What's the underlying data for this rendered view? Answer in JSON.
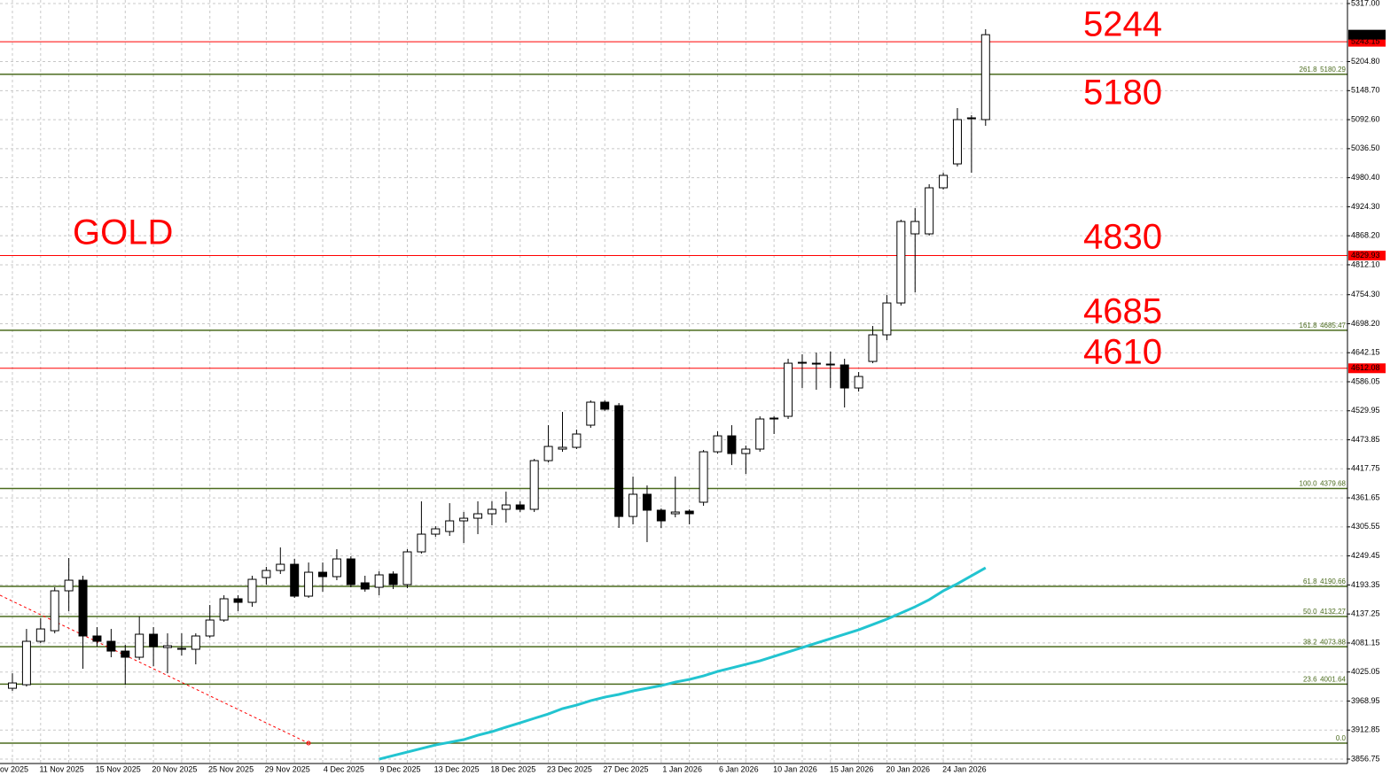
{
  "chart_data": {
    "type": "candlestick",
    "annotations": [
      "GOLD",
      "5244",
      "5180",
      "4830",
      "4685",
      "4610"
    ],
    "categories": [
      "ov 2025",
      null,
      null,
      null,
      "11 Nov 2025",
      null,
      null,
      null,
      "15 Nov 2025",
      null,
      null,
      null,
      "20 Nov 2025",
      null,
      null,
      null,
      "25 Nov 2025",
      null,
      null,
      null,
      "29 Nov 2025",
      null,
      null,
      null,
      "4 Dec 2025",
      null,
      null,
      null,
      "9 Dec 2025",
      null,
      null,
      null,
      "13 Dec 2025",
      null,
      null,
      null,
      "18 Dec 2025",
      null,
      null,
      null,
      "23 Dec 2025",
      null,
      null,
      null,
      "27 Dec 2025",
      null,
      null,
      null,
      "1 Jan 2026",
      null,
      null,
      null,
      "6 Jan 2026",
      null,
      null,
      null,
      "10 Jan 2026",
      null,
      null,
      null,
      "15 Jan 2026",
      null,
      null,
      null,
      "20 Jan 2026",
      null,
      null,
      null,
      "24 Jan 2026",
      null
    ],
    "open": [
      3993.6,
      4000.5,
      4084.4,
      4104.9,
      4182.0,
      4202.5,
      4094.7,
      4084.4,
      4065.5,
      4053.6,
      4098.1,
      4072.4,
      4069.0,
      4069.0,
      4094.7,
      4125.5,
      4166.6,
      4159.7,
      4207.6,
      4221.3,
      4233.3,
      4171.7,
      4217.9,
      4209.4,
      4243.6,
      4197.4,
      4188.8,
      4214.5,
      4194.0,
      4257.3,
      4291.5,
      4296.6,
      4317.2,
      4322.3,
      4330.9,
      4339.5,
      4348.0,
      4339.5,
      4433.6,
      4455.9,
      4459.3,
      4502.1,
      4546.6,
      4539.8,
      4325.7,
      4368.6,
      4337.8,
      4330.9,
      4336.0,
      4353.2,
      4450.7,
      4481.5,
      4447.3,
      4455.9,
      4514.1,
      4519.2,
      4621.9,
      4620.2,
      4618.5,
      4618.5,
      4574.0,
      4625.3,
      4676.7,
      4738.3,
      4871.9,
      4871.9,
      4960.9,
      5007.1,
      5094.4,
      5092.7
    ],
    "high": [
      4022.7,
      4108.3,
      4128.9,
      4188.8,
      4245.3,
      4211.1,
      4111.8,
      4108.3,
      4077.5,
      4132.3,
      4111.8,
      4099.8,
      4099.8,
      4099.8,
      4154.6,
      4173.4,
      4173.4,
      4211.1,
      4228.2,
      4265.8,
      4243.6,
      4236.7,
      4236.7,
      4262.4,
      4248.7,
      4211.1,
      4219.6,
      4219.6,
      4262.4,
      4354.9,
      4306.9,
      4351.4,
      4334.3,
      4354.9,
      4354.9,
      4373.7,
      4354.9,
      4437.0,
      4502.1,
      4527.8,
      4493.5,
      4550.0,
      4550.0,
      4544.9,
      4402.8,
      4385.7,
      4341.2,
      4402.8,
      4339.5,
      4454.2,
      4490.1,
      4502.1,
      4462.7,
      4519.2,
      4519.2,
      4630.5,
      4639.1,
      4642.5,
      4644.2,
      4630.5,
      4604.8,
      4693.8,
      4753.7,
      4899.3,
      4921.5,
      4967.8,
      4990.0,
      5115.0,
      5101.3,
      5267.4
    ],
    "low": [
      3988.5,
      3997.0,
      4081.0,
      4099.8,
      4142.6,
      4031.3,
      4074.1,
      4053.6,
      4000.5,
      4048.4,
      4036.4,
      4022.7,
      4057.0,
      4039.9,
      4091.2,
      4122.1,
      4142.6,
      4151.2,
      4194.0,
      4214.5,
      4168.3,
      4168.3,
      4180.2,
      4202.5,
      4188.8,
      4180.2,
      4173.4,
      4185.4,
      4187.1,
      4253.9,
      4286.4,
      4288.1,
      4274.4,
      4291.5,
      4308.6,
      4313.8,
      4334.3,
      4334.3,
      4430.2,
      4450.7,
      4455.9,
      4497.0,
      4529.5,
      4303.5,
      4310.4,
      4276.1,
      4303.5,
      4324.0,
      4310.4,
      4346.3,
      4447.3,
      4425.0,
      4407.9,
      4450.7,
      4485.0,
      4514.1,
      4574.0,
      4570.6,
      4574.0,
      4536.3,
      4567.1,
      4621.9,
      4666.4,
      4733.2,
      4758.9,
      4868.5,
      4957.5,
      5002.0,
      4990.0,
      5080.7
    ],
    "close": [
      4003.9,
      4084.4,
      4108.3,
      4182.0,
      4202.5,
      4094.7,
      4084.4,
      4065.5,
      4053.6,
      4098.1,
      4074.1,
      4075.8,
      4070.7,
      4094.7,
      4125.5,
      4166.6,
      4159.7,
      4204.2,
      4221.3,
      4233.3,
      4171.7,
      4217.9,
      4209.4,
      4243.6,
      4194.0,
      4185.4,
      4212.8,
      4194.0,
      4257.3,
      4291.5,
      4301.8,
      4317.2,
      4322.3,
      4330.9,
      4339.5,
      4348.0,
      4339.5,
      4433.6,
      4461.0,
      4459.3,
      4485.0,
      4546.6,
      4532.9,
      4325.7,
      4368.6,
      4337.8,
      4317.2,
      4334.3,
      4330.9,
      4450.7,
      4481.5,
      4447.3,
      4455.9,
      4514.1,
      4515.8,
      4621.9,
      4623.6,
      4621.9,
      4620.2,
      4574.0,
      4596.2,
      4676.7,
      4738.3,
      4895.8,
      4895.8,
      4960.9,
      4984.9,
      5092.7,
      5096.1,
      5256.83
    ],
    "up_color": "#ffffff",
    "down_color": "#000000",
    "outline_color": "#000000",
    "ma": {
      "color": "#22c4d0",
      "values": [
        null,
        null,
        null,
        null,
        null,
        null,
        null,
        null,
        null,
        null,
        null,
        null,
        null,
        null,
        null,
        null,
        null,
        null,
        null,
        null,
        null,
        null,
        null,
        null,
        null,
        null,
        3856.7,
        3863.5,
        3870.4,
        3877.2,
        3884.1,
        3889.2,
        3894.4,
        3902.9,
        3909.8,
        3918.4,
        3926.9,
        3935.5,
        3944.0,
        3954.3,
        3961.1,
        3969.7,
        3976.5,
        3981.7,
        3988.5,
        3993.6,
        3998.8,
        4005.6,
        4010.7,
        4017.6,
        4026.1,
        4033.0,
        4039.9,
        4046.7,
        4055.3,
        4063.8,
        4072.4,
        4080.9,
        4089.5,
        4098.1,
        4106.6,
        4116.9,
        4127.2,
        4139.1,
        4151.1,
        4164.8,
        4181.9,
        4195.6,
        4211.1,
        4226.5
      ]
    },
    "red_levels": {
      "color": "#ff0000",
      "values": [
        5243.15,
        4829.93,
        4612.08
      ]
    },
    "fib_levels": {
      "color": "#4b6b1e",
      "levels": [
        {
          "ratio": "261.8",
          "price": 5180.29
        },
        {
          "ratio": "161.8",
          "price": 4685.47
        },
        {
          "ratio": "100.0",
          "price": 4379.68
        },
        {
          "ratio": "61.8",
          "price": 4190.66
        },
        {
          "ratio": "50.0",
          "price": 4132.27
        },
        {
          "ratio": "38.2",
          "price": 4073.88
        },
        {
          "ratio": "23.6",
          "price": 4001.64
        },
        {
          "ratio": "0.0",
          "price": 3887.6,
          "price_shown": false
        }
      ]
    },
    "ylim": [
      3848.2,
      5323.85
    ],
    "yticks": [
      {
        "value": 5317,
        "label": "5317.00"
      },
      {
        "value": 5204.8,
        "label": "5204.80"
      },
      {
        "value": 5148.7,
        "label": "5148.70"
      },
      {
        "value": 5092.6,
        "label": "5092.60"
      },
      {
        "value": 5036.5,
        "label": "5036.50"
      },
      {
        "value": 4980.4,
        "label": "4980.40"
      },
      {
        "value": 4924.3,
        "label": "4924.30"
      },
      {
        "value": 4868.2,
        "label": "4868.20"
      },
      {
        "value": 4812.1,
        "label": "4812.10"
      },
      {
        "value": 4754.3,
        "label": "4754.30"
      },
      {
        "value": 4698.2,
        "label": "4698.20"
      },
      4642.15,
      4586.05,
      4529.95,
      4473.85,
      4417.75,
      4361.65,
      4305.55,
      4249.45,
      4193.35,
      4137.25,
      4081.15,
      4025.05,
      3968.95,
      3912.85,
      3856.75
    ],
    "grid": true
  }
}
